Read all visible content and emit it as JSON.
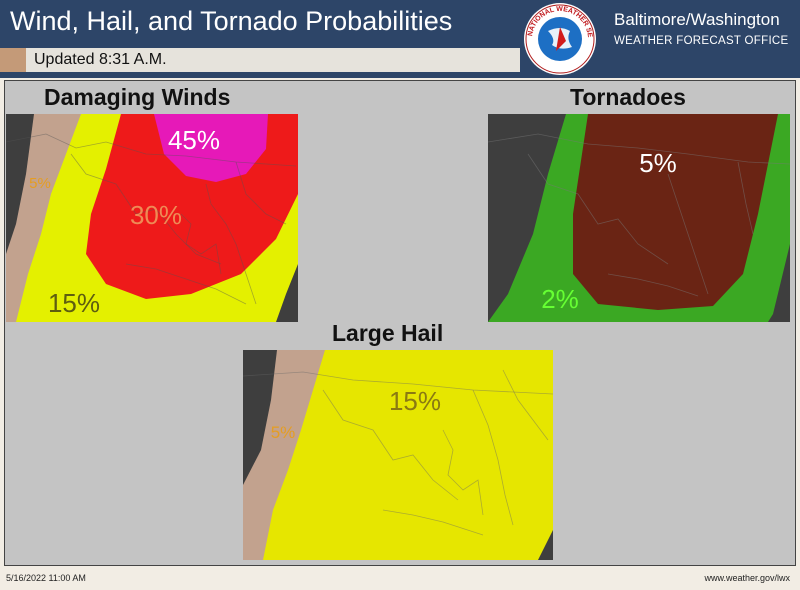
{
  "header": {
    "title": "Wind, Hail, and Tornado Probabilities",
    "updated": "Updated 8:31 A.M.",
    "office_name": "Baltimore/Washington",
    "office_sub": "WEATHER FORECAST OFFICE",
    "logo_text": "NATIONAL WEATHER SERVICE",
    "logo_icon": "nws-logo-icon"
  },
  "panels": {
    "winds": {
      "title": "Damaging Winds",
      "labels": {
        "p45": "45%",
        "p30": "30%",
        "p15": "15%",
        "p5": "5%"
      }
    },
    "tornadoes": {
      "title": "Tornadoes",
      "labels": {
        "p5": "5%",
        "p2": "2%"
      }
    },
    "hail": {
      "title": "Large Hail",
      "labels": {
        "p15": "15%",
        "p5": "5%"
      }
    }
  },
  "colors": {
    "p45": "#e619b8",
    "p30": "#ee1a1a",
    "p15": "#e4f000",
    "hail15": "#e6e600",
    "p5": "#c2a28e",
    "tor5": "#6a2414",
    "tor2": "#3ba823",
    "none": "#3e3e3e"
  },
  "footer": {
    "date": "5/16/2022 11:00 AM",
    "url": "www.weather.gov/lwx"
  }
}
